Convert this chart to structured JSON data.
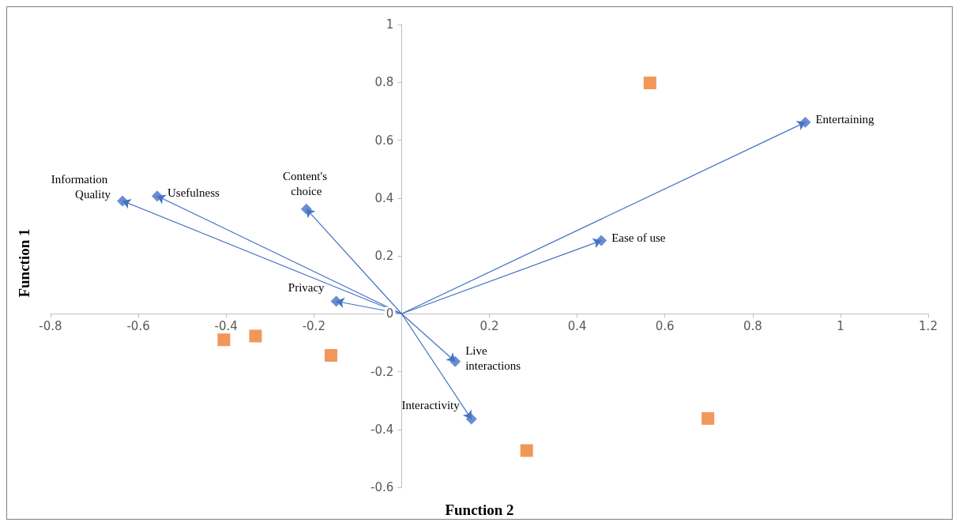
{
  "chart_data": {
    "type": "scatter",
    "xlabel": "Function 2",
    "ylabel": "Function 1",
    "xlim": [
      -0.8,
      1.2
    ],
    "ylim": [
      -0.6,
      1
    ],
    "xticks": [
      -0.8,
      -0.6,
      -0.4,
      -0.2,
      {
        "value": 0,
        "label": null
      },
      0.2,
      0.4,
      0.6,
      0.8,
      1,
      1.2
    ],
    "yticks": [
      -0.6,
      -0.4,
      -0.2,
      0,
      0.2,
      0.4,
      0.6,
      0.8,
      1
    ],
    "grid": false,
    "series": [
      {
        "color": "#4472c4",
        "marker": "diamond",
        "line_style": "solid",
        "x": [
          -0.636,
          -0.557,
          -0.217,
          -0.149,
          0.455,
          0.92,
          0.122,
          0.159
        ],
        "values": [
          0.39,
          0.407,
          0.362,
          0.043,
          0.253,
          0.662,
          -0.165,
          -0.364
        ]
      },
      {
        "color": "#ed7d31",
        "marker": "square",
        "x": [
          0.566,
          0.698,
          0.285,
          -0.405,
          -0.333,
          -0.161
        ],
        "values": [
          0.798,
          -0.362,
          -0.473,
          -0.09,
          -0.077,
          -0.144
        ]
      }
    ],
    "annotations": [
      {
        "text": "Information Quality",
        "x": -0.636,
        "y": 0.39
      },
      {
        "text": "Usefulness",
        "x": -0.557,
        "y": 0.407
      },
      {
        "text": "Content's choice",
        "x": -0.217,
        "y": 0.362
      },
      {
        "text": "Privacy",
        "x": -0.149,
        "y": 0.043
      },
      {
        "text": "Ease of use",
        "x": 0.455,
        "y": 0.253
      },
      {
        "text": "Entertaining",
        "x": 0.92,
        "y": 0.662
      },
      {
        "text": "Live interactions",
        "x": 0.122,
        "y": -0.165
      },
      {
        "text": "Interactivity",
        "x": 0.159,
        "y": -0.364
      }
    ]
  }
}
